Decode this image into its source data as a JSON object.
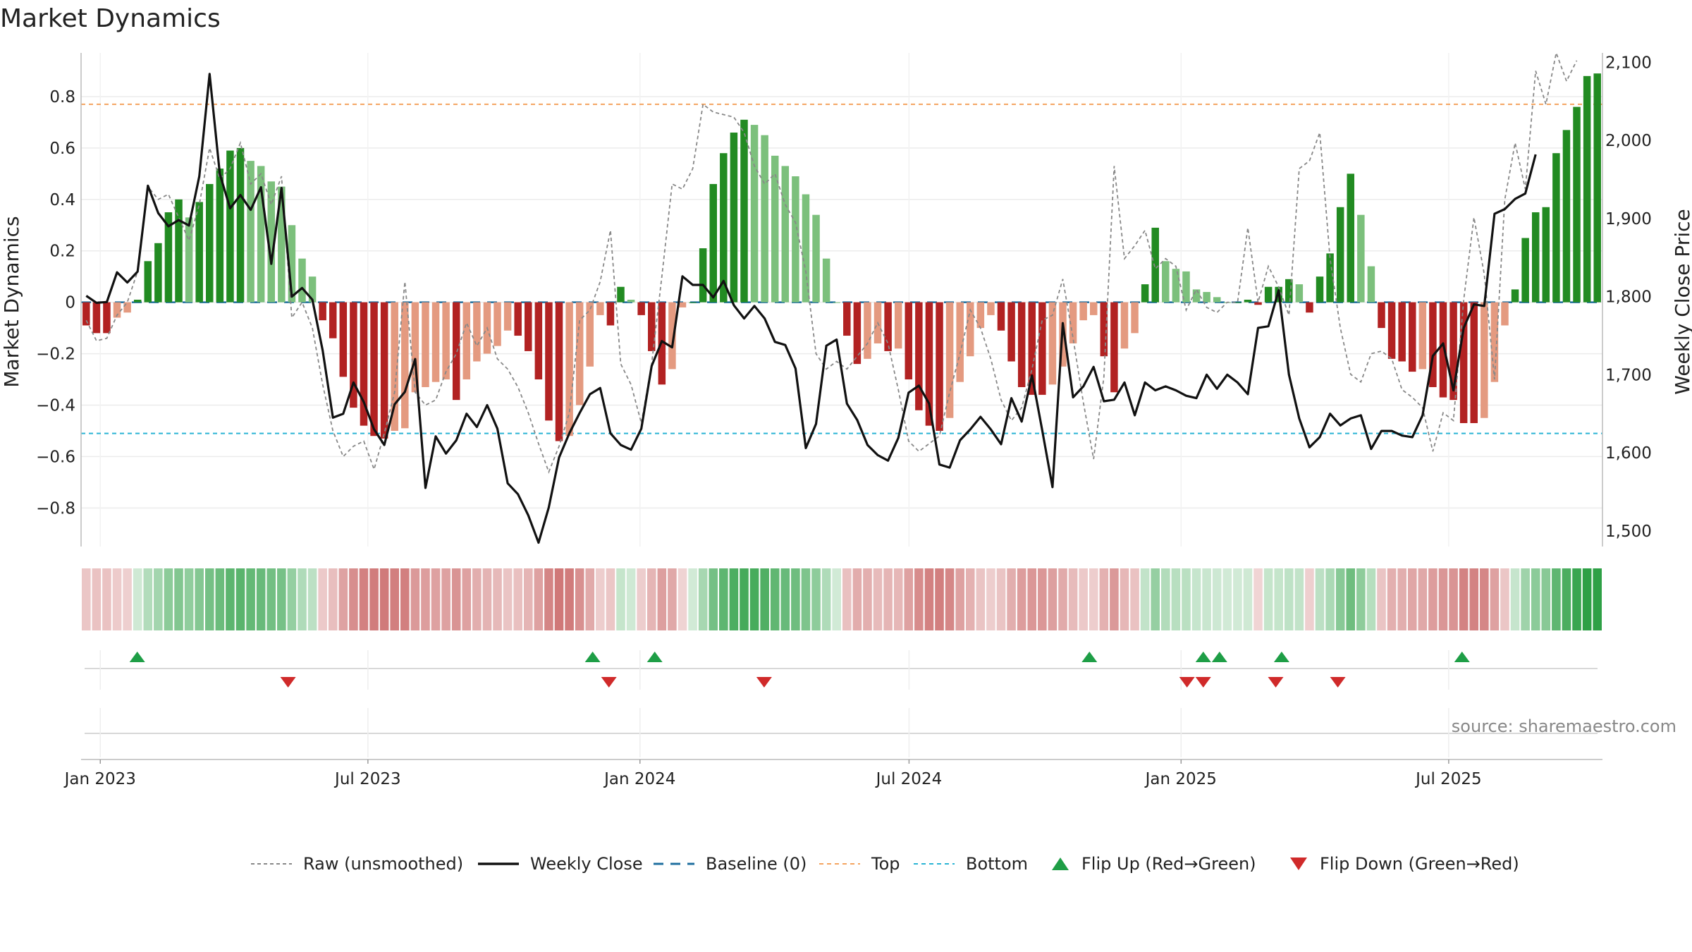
{
  "title": "Market Dynamics",
  "source": "source: sharemaestro.com",
  "chart_data": {
    "type": "bar",
    "title": "Market Dynamics",
    "ylabel_left": "Market Dynamics",
    "ylabel_right": "Weekly Close Price",
    "ylim_left": [
      -0.95,
      0.97
    ],
    "ylim_right": [
      1480,
      2112
    ],
    "left_ticks": [
      0.8,
      0.6,
      0.4,
      0.2,
      0,
      -0.2,
      -0.4,
      -0.6,
      -0.8
    ],
    "left_tick_labels": [
      "0.8",
      "0.6",
      "0.4",
      "0.2",
      "0",
      "−0.2",
      "−0.4",
      "−0.6",
      "−0.8"
    ],
    "right_ticks": [
      2100,
      2000,
      1900,
      1800,
      1700,
      1600,
      1500
    ],
    "right_tick_labels": [
      "2,100",
      "2,000",
      "1,900",
      "1,800",
      "1,700",
      "1,600",
      "1,500"
    ],
    "x_start": "2022-12-19",
    "x_end": "2025-10-13",
    "x_ticks": [
      "2023-01-01",
      "2023-07-01",
      "2024-01-01",
      "2024-07-01",
      "2025-01-01",
      "2025-07-01"
    ],
    "x_tick_labels": [
      "Jan 2023",
      "Jul 2023",
      "Jan 2024",
      "Jul 2024",
      "Jan 2025",
      "Jul 2025"
    ],
    "top_threshold": 0.77,
    "bottom_threshold": -0.51,
    "baseline": 0,
    "grid": true,
    "colors": {
      "green_strong": "#228b22",
      "green_weak": "#7cc07c",
      "red_strong": "#b22222",
      "red_weak": "#e49a80",
      "weekly_close": "#111111",
      "raw": "#888888",
      "baseline": "#1f6f9f",
      "top": "#f4a460",
      "bottom": "#2ab4d4",
      "flip_up": "#1e9e46",
      "flip_down": "#d02a2a"
    },
    "dynamics": [
      -0.09,
      -0.12,
      -0.12,
      -0.06,
      -0.04,
      0.01,
      0.16,
      0.23,
      0.35,
      0.4,
      0.33,
      0.39,
      0.46,
      0.52,
      0.59,
      0.6,
      0.55,
      0.53,
      0.47,
      0.45,
      0.3,
      0.17,
      0.1,
      -0.07,
      -0.14,
      -0.29,
      -0.41,
      -0.48,
      -0.52,
      -0.53,
      -0.5,
      -0.49,
      -0.35,
      -0.33,
      -0.31,
      -0.3,
      -0.38,
      -0.3,
      -0.23,
      -0.2,
      -0.17,
      -0.11,
      -0.13,
      -0.19,
      -0.3,
      -0.46,
      -0.54,
      -0.52,
      -0.4,
      -0.25,
      -0.05,
      -0.09,
      0.06,
      0.01,
      -0.05,
      -0.19,
      -0.32,
      -0.26,
      -0.02,
      0.0,
      0.21,
      0.46,
      0.58,
      0.66,
      0.71,
      0.69,
      0.65,
      0.57,
      0.53,
      0.49,
      0.42,
      0.34,
      0.17,
      0.0,
      -0.13,
      -0.24,
      -0.22,
      -0.16,
      -0.19,
      -0.18,
      -0.3,
      -0.42,
      -0.48,
      -0.5,
      -0.45,
      -0.31,
      -0.21,
      -0.1,
      -0.05,
      -0.11,
      -0.23,
      -0.33,
      -0.36,
      -0.36,
      -0.32,
      -0.25,
      -0.16,
      -0.07,
      -0.05,
      -0.21,
      -0.35,
      -0.18,
      -0.12,
      0.07,
      0.29,
      0.16,
      0.13,
      0.12,
      0.05,
      0.04,
      0.02,
      0.0,
      0.0,
      0.01,
      -0.01,
      0.06,
      0.06,
      0.09,
      0.07,
      -0.04,
      0.1,
      0.19,
      0.37,
      0.5,
      0.34,
      0.14,
      -0.1,
      -0.22,
      -0.23,
      -0.27,
      -0.26,
      -0.33,
      -0.37,
      -0.38,
      -0.47,
      -0.47,
      -0.45,
      -0.31,
      -0.09,
      0.05,
      0.25,
      0.35,
      0.37,
      0.58,
      0.67,
      0.76,
      0.88,
      0.89
    ],
    "weekly_close": [
      1801,
      1792,
      1793,
      1831,
      1818,
      1832,
      1942,
      1907,
      1890,
      1898,
      1891,
      1954,
      2085,
      1957,
      1913,
      1930,
      1911,
      1940,
      1842,
      1939,
      1800,
      1811,
      1796,
      1731,
      1645,
      1650,
      1690,
      1665,
      1630,
      1610,
      1662,
      1678,
      1720,
      1555,
      1621,
      1599,
      1616,
      1650,
      1633,
      1661,
      1631,
      1561,
      1547,
      1520,
      1485,
      1530,
      1594,
      1625,
      1651,
      1675,
      1683,
      1625,
      1610,
      1604,
      1631,
      1711,
      1743,
      1735,
      1826,
      1815,
      1815,
      1799,
      1820,
      1789,
      1772,
      1788,
      1772,
      1742,
      1738,
      1708,
      1606,
      1637,
      1737,
      1745,
      1663,
      1642,
      1610,
      1597,
      1590,
      1619,
      1677,
      1686,
      1663,
      1585,
      1581,
      1616,
      1630,
      1646,
      1630,
      1611,
      1670,
      1640,
      1699,
      1629,
      1556,
      1766,
      1671,
      1685,
      1710,
      1666,
      1668,
      1690,
      1648,
      1690,
      1680,
      1685,
      1680,
      1673,
      1670,
      1700,
      1682,
      1700,
      1690,
      1675,
      1760,
      1762,
      1808,
      1700,
      1644,
      1607,
      1620,
      1650,
      1635,
      1644,
      1648,
      1605,
      1628,
      1628,
      1622,
      1620,
      1648,
      1724,
      1740,
      1680,
      1760,
      1790,
      1788,
      1906,
      1912,
      1925,
      1932,
      1982
    ],
    "raw": [
      -0.07,
      -0.15,
      -0.14,
      -0.05,
      0.0,
      0.12,
      0.45,
      0.4,
      0.42,
      0.33,
      0.24,
      0.38,
      0.6,
      0.48,
      0.52,
      0.62,
      0.46,
      0.5,
      0.38,
      0.49,
      -0.06,
      0.0,
      -0.1,
      -0.32,
      -0.5,
      -0.6,
      -0.56,
      -0.54,
      -0.65,
      -0.51,
      -0.35,
      0.08,
      -0.35,
      -0.4,
      -0.38,
      -0.27,
      -0.2,
      -0.08,
      -0.17,
      -0.1,
      -0.22,
      -0.26,
      -0.33,
      -0.43,
      -0.55,
      -0.66,
      -0.56,
      -0.43,
      -0.07,
      -0.03,
      0.08,
      0.28,
      -0.24,
      -0.32,
      -0.47,
      -0.24,
      0.1,
      0.46,
      0.44,
      0.52,
      0.77,
      0.74,
      0.73,
      0.72,
      0.66,
      0.53,
      0.46,
      0.5,
      0.38,
      0.31,
      0.12,
      -0.2,
      -0.26,
      -0.23,
      -0.26,
      -0.21,
      -0.16,
      -0.08,
      -0.16,
      -0.34,
      -0.54,
      -0.58,
      -0.55,
      -0.52,
      -0.35,
      -0.2,
      -0.03,
      -0.1,
      -0.22,
      -0.38,
      -0.46,
      -0.41,
      -0.26,
      -0.07,
      -0.05,
      0.09,
      -0.14,
      -0.39,
      -0.61,
      -0.29,
      0.53,
      0.17,
      0.22,
      0.28,
      0.13,
      0.17,
      0.14,
      -0.03,
      0.05,
      -0.02,
      -0.04,
      0.0,
      0.0,
      0.29,
      0.0,
      0.14,
      0.06,
      -0.05,
      0.52,
      0.55,
      0.66,
      0.17,
      -0.1,
      -0.28,
      -0.31,
      -0.2,
      -0.19,
      -0.22,
      -0.34,
      -0.37,
      -0.41,
      -0.58,
      -0.43,
      -0.46,
      0.01,
      0.33,
      0.11,
      -0.3,
      0.4,
      0.62,
      0.44,
      0.9,
      0.77,
      0.97,
      0.86,
      0.94
    ]
  },
  "flips": {
    "up": [
      "2023-01-26",
      "2023-11-30",
      "2024-01-11",
      "2024-10-31",
      "2025-01-16",
      "2025-01-27",
      "2025-03-10",
      "2025-07-10"
    ],
    "down": [
      "2023-05-08",
      "2023-12-11",
      "2024-03-25",
      "2025-01-05",
      "2025-01-16",
      "2025-03-06",
      "2025-04-17"
    ]
  },
  "legend": [
    {
      "key": "raw",
      "label": "Raw (unsmoothed)"
    },
    {
      "key": "close",
      "label": "Weekly Close"
    },
    {
      "key": "baseline",
      "label": "Baseline (0)"
    },
    {
      "key": "top",
      "label": "Top"
    },
    {
      "key": "bottom",
      "label": "Bottom"
    },
    {
      "key": "flip_up",
      "label": "Flip Up (Red→Green)"
    },
    {
      "key": "flip_down",
      "label": "Flip Down (Green→Red)"
    }
  ]
}
